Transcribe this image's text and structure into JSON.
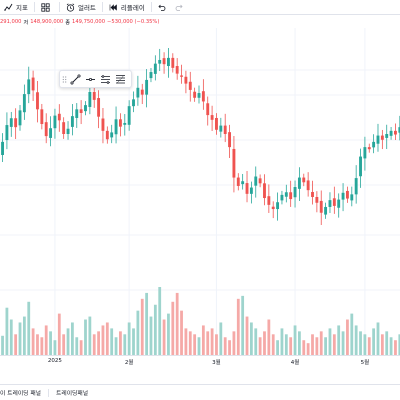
{
  "toolbar": {
    "indicators_label": "지표",
    "alerts_label": "얼러트",
    "replay_label": "리플레이"
  },
  "legend": {
    "prefix": "291,000",
    "low_label": "저",
    "low_value": "148,900,000",
    "close_label": "종",
    "close_value": "149,750,000",
    "change": "−530,000 (−0.35%)"
  },
  "time_axis": {
    "labels": [
      "2025",
      "2월",
      "3월",
      "4월",
      "5월"
    ]
  },
  "bottom_panel": {
    "tabs": [
      "이 트레이딩 패널",
      "트레이딩패널"
    ]
  },
  "colors": {
    "up": "#26a69a",
    "down": "#ef5350",
    "up_volume": "#9ed4cd",
    "down_volume": "#f5a9a7",
    "accent": "#2962ff"
  },
  "chart_data": {
    "type": "candlestick",
    "x_labels": [
      "2025",
      "2월",
      "3월",
      "4월",
      "5월"
    ],
    "closes": [
      134.5,
      137.0,
      140.2,
      141.5,
      139.8,
      143.0,
      146.1,
      148.9,
      146.8,
      143.2,
      140.4,
      138.1,
      139.6,
      142.0,
      141.1,
      138.5,
      139.5,
      141.9,
      143.2,
      142.5,
      144.0,
      146.5,
      145.0,
      141.8,
      139.1,
      137.5,
      138.8,
      141.3,
      139.9,
      140.6,
      143.8,
      145.1,
      147.3,
      146.0,
      148.8,
      150.3,
      151.9,
      152.6,
      151.8,
      153.0,
      151.1,
      150.0,
      149.4,
      148.1,
      146.9,
      145.4,
      146.3,
      144.7,
      142.1,
      141.2,
      139.3,
      140.1,
      138.5,
      136.0,
      130.2,
      128.6,
      129.5,
      127.1,
      128.3,
      130.4,
      129.1,
      126.3,
      125.0,
      124.2,
      125.5,
      126.9,
      127.4,
      126.1,
      128.4,
      130.2,
      129.3,
      127.8,
      126.5,
      125.4,
      123.5,
      124.6,
      125.9,
      124.8,
      126.0,
      127.3,
      126.2,
      127.0,
      130.1,
      134.2,
      136.0,
      135.6,
      137.0,
      138.2,
      137.4,
      138.5,
      139.1,
      138.4,
      139.8
    ],
    "volumes": [
      20,
      13,
      32,
      24,
      14,
      22,
      26,
      36,
      18,
      14,
      12,
      20,
      16,
      10,
      28,
      14,
      18,
      22,
      12,
      10,
      24,
      26,
      14,
      16,
      20,
      22,
      18,
      12,
      16,
      14,
      22,
      18,
      30,
      38,
      42,
      26,
      34,
      46,
      24,
      28,
      36,
      42,
      30,
      18,
      16,
      14,
      12,
      20,
      16,
      18,
      14,
      22,
      12,
      10,
      16,
      38,
      40,
      26,
      22,
      18,
      12,
      16,
      24,
      14,
      10,
      18,
      14,
      12,
      20,
      16,
      10,
      8,
      14,
      12,
      16,
      12,
      18,
      14,
      20,
      16,
      24,
      28,
      20,
      16,
      14,
      12,
      18,
      22,
      14,
      16,
      12,
      10,
      14
    ]
  }
}
